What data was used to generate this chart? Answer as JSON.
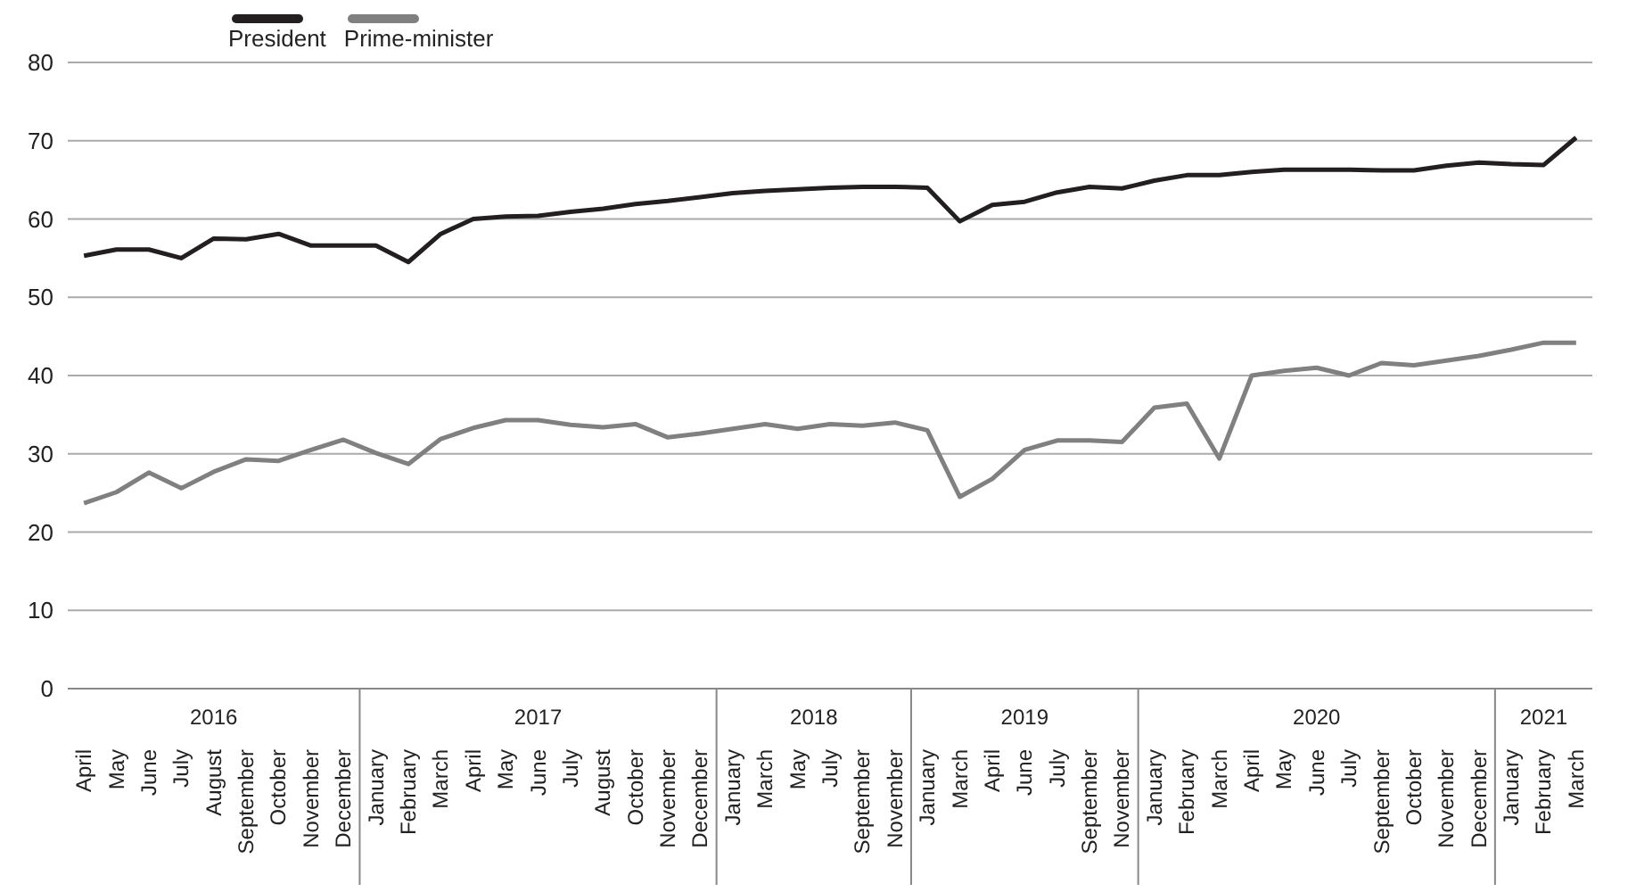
{
  "chart_data": {
    "type": "line",
    "categories": [
      "April",
      "May",
      "June",
      "July",
      "August",
      "September",
      "October",
      "November",
      "December",
      "January",
      "February",
      "March",
      "April",
      "May",
      "June",
      "July",
      "August",
      "October",
      "November",
      "December",
      "January",
      "March",
      "May",
      "July",
      "September",
      "November",
      "January",
      "March",
      "April",
      "June",
      "July",
      "September",
      "November",
      "January",
      "February",
      "March",
      "April",
      "May",
      "June",
      "July",
      "September",
      "October",
      "November",
      "December",
      "January",
      "February",
      "March"
    ],
    "series": [
      {
        "name": "President",
        "color": "#231f20",
        "values": [
          55.3,
          56.1,
          56.1,
          55.0,
          57.5,
          57.4,
          58.1,
          56.6,
          56.6,
          56.6,
          54.5,
          58.1,
          60.0,
          60.3,
          60.4,
          60.9,
          61.3,
          61.9,
          62.3,
          62.8,
          63.3,
          63.6,
          63.8,
          64.0,
          64.1,
          64.1,
          64.0,
          59.7,
          61.8,
          62.2,
          63.4,
          64.1,
          63.9,
          64.9,
          65.6,
          65.6,
          66.0,
          66.3,
          66.3,
          66.3,
          66.2,
          66.2,
          66.8,
          67.2,
          67.0,
          66.9,
          70.4
        ]
      },
      {
        "name": "Prime-minister",
        "color": "#808080",
        "values": [
          23.7,
          25.1,
          27.6,
          25.6,
          27.7,
          29.3,
          29.1,
          30.5,
          31.8,
          30.1,
          28.7,
          31.9,
          33.3,
          34.3,
          34.3,
          33.7,
          33.4,
          33.8,
          32.1,
          32.6,
          33.2,
          33.8,
          33.2,
          33.8,
          33.6,
          34.0,
          33.0,
          24.5,
          26.8,
          30.5,
          31.7,
          31.7,
          31.5,
          35.9,
          36.4,
          29.4,
          40.0,
          40.6,
          41.0,
          40.0,
          41.6,
          41.3,
          41.9,
          42.5,
          43.3,
          44.2,
          44.2
        ]
      }
    ],
    "annotations": [
      "2016",
      "2017",
      "2018",
      "2019",
      "2020",
      "2021"
    ],
    "ylim": [
      0,
      80
    ],
    "yticks": [
      0,
      10,
      20,
      30,
      40,
      50,
      60,
      70,
      80
    ],
    "grid": "y",
    "legend": "top left",
    "marker": "none",
    "line_style": "solid"
  }
}
